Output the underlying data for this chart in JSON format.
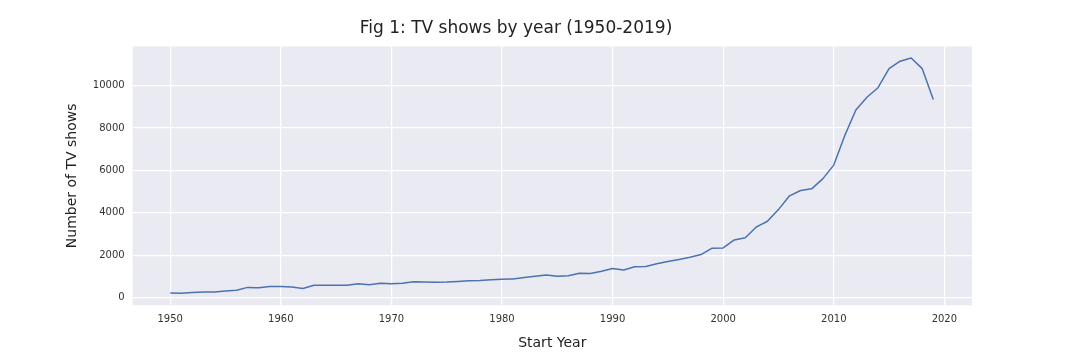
{
  "chart_data": {
    "type": "line",
    "title": "Fig 1: TV shows by year (1950-2019)",
    "xlabel": "Start Year",
    "ylabel": "Number of TV shows",
    "x": [
      1950,
      1951,
      1952,
      1953,
      1954,
      1955,
      1956,
      1957,
      1958,
      1959,
      1960,
      1961,
      1962,
      1963,
      1964,
      1965,
      1966,
      1967,
      1968,
      1969,
      1970,
      1971,
      1972,
      1973,
      1974,
      1975,
      1976,
      1977,
      1978,
      1979,
      1980,
      1981,
      1982,
      1983,
      1984,
      1985,
      1986,
      1987,
      1988,
      1989,
      1990,
      1991,
      1992,
      1993,
      1994,
      1995,
      1996,
      1997,
      1998,
      1999,
      2000,
      2001,
      2002,
      2003,
      2004,
      2005,
      2006,
      2007,
      2008,
      2009,
      2010,
      2011,
      2012,
      2013,
      2014,
      2015,
      2016,
      2017,
      2018,
      2019
    ],
    "series": [
      {
        "color": "#4c72b0",
        "values": [
          220,
          200,
          240,
          260,
          260,
          310,
          350,
          480,
          460,
          520,
          520,
          500,
          430,
          580,
          580,
          580,
          580,
          650,
          610,
          680,
          650,
          680,
          750,
          730,
          720,
          730,
          760,
          790,
          800,
          840,
          870,
          880,
          950,
          1010,
          1070,
          1010,
          1030,
          1150,
          1140,
          1240,
          1370,
          1300,
          1450,
          1470,
          1600,
          1700,
          1800,
          1900,
          2030,
          2330,
          2340,
          2720,
          2820,
          3330,
          3600,
          4150,
          4800,
          5050,
          5130,
          5600,
          6250,
          7650,
          8850,
          9450,
          9900,
          10800,
          11150,
          11300,
          10800,
          9350
        ]
      }
    ],
    "xlim": [
      1946.6,
      2022.5
    ],
    "xticks": [
      1950,
      1960,
      1970,
      1980,
      1990,
      2000,
      2010,
      2020
    ],
    "ylim": [
      -360,
      11850
    ],
    "yticks": [
      0,
      2000,
      4000,
      6000,
      8000,
      10000
    ],
    "grid": true,
    "legend": false,
    "marker": "none",
    "line_style": "solid"
  }
}
